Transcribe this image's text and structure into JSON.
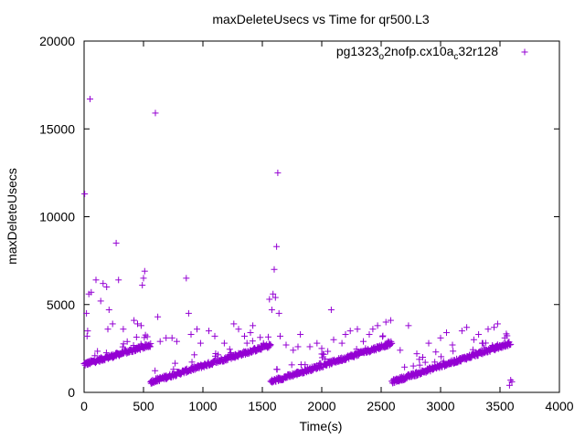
{
  "chart_data": {
    "type": "scatter",
    "title": "maxDeleteUsecs vs Time for qr500.L3",
    "xlabel": "Time(s)",
    "ylabel": "maxDeleteUsecs",
    "xlim": [
      0,
      4000
    ],
    "ylim": [
      0,
      20000
    ],
    "xticks": [
      0,
      500,
      1000,
      1500,
      2000,
      2500,
      3000,
      3500,
      4000
    ],
    "yticks": [
      0,
      5000,
      10000,
      15000,
      20000
    ],
    "grid": false,
    "legend_position": "top-right",
    "marker": "plus",
    "color": "#9400d3",
    "series": [
      {
        "name": "pg1323_o2nofp.cx10a_c32r128",
        "legend": {
          "part1": "pg1323",
          "sub1": "o",
          "part2": "2nofp.cx10a",
          "sub2": "c",
          "part3": "32r128"
        },
        "segments": [
          {
            "x_start": 0,
            "x_end": 560,
            "y_start": 1600,
            "y_end": 2700,
            "n": 180
          },
          {
            "x_start": 560,
            "x_end": 1570,
            "y_start": 600,
            "y_end": 2700,
            "n": 300
          },
          {
            "x_start": 1570,
            "x_end": 2590,
            "y_start": 600,
            "y_end": 2800,
            "n": 300
          },
          {
            "x_start": 2590,
            "x_end": 3590,
            "y_start": 600,
            "y_end": 2800,
            "n": 300
          }
        ],
        "outliers": [
          [
            5,
            11300
          ],
          [
            40,
            5600
          ],
          [
            50,
            16700
          ],
          [
            60,
            5700
          ],
          [
            20,
            4500
          ],
          [
            30,
            3500
          ],
          [
            25,
            3200
          ],
          [
            100,
            6400
          ],
          [
            140,
            5200
          ],
          [
            160,
            6200
          ],
          [
            190,
            6000
          ],
          [
            210,
            4700
          ],
          [
            270,
            8500
          ],
          [
            290,
            6400
          ],
          [
            200,
            3600
          ],
          [
            240,
            3900
          ],
          [
            330,
            3600
          ],
          [
            420,
            4100
          ],
          [
            450,
            3900
          ],
          [
            480,
            3800
          ],
          [
            490,
            6100
          ],
          [
            500,
            6500
          ],
          [
            510,
            6900
          ],
          [
            600,
            15900
          ],
          [
            620,
            4300
          ],
          [
            640,
            2900
          ],
          [
            690,
            3100
          ],
          [
            740,
            3100
          ],
          [
            780,
            2900
          ],
          [
            860,
            6500
          ],
          [
            880,
            4500
          ],
          [
            900,
            3300
          ],
          [
            950,
            3600
          ],
          [
            980,
            2800
          ],
          [
            1050,
            3500
          ],
          [
            1100,
            3200
          ],
          [
            1180,
            2800
          ],
          [
            1260,
            3900
          ],
          [
            1300,
            3600
          ],
          [
            1350,
            3200
          ],
          [
            1400,
            3400
          ],
          [
            1420,
            3800
          ],
          [
            1560,
            5300
          ],
          [
            1580,
            4700
          ],
          [
            1590,
            5600
          ],
          [
            1600,
            7000
          ],
          [
            1610,
            5400
          ],
          [
            1620,
            8300
          ],
          [
            1630,
            12500
          ],
          [
            1640,
            4500
          ],
          [
            1650,
            3200
          ],
          [
            1700,
            2700
          ],
          [
            1760,
            2400
          ],
          [
            1800,
            2600
          ],
          [
            1820,
            3300
          ],
          [
            1900,
            2600
          ],
          [
            1960,
            2800
          ],
          [
            2000,
            2500
          ],
          [
            2080,
            4700
          ],
          [
            2100,
            3000
          ],
          [
            2170,
            2800
          ],
          [
            2200,
            3300
          ],
          [
            2240,
            3500
          ],
          [
            2300,
            3600
          ],
          [
            2350,
            2900
          ],
          [
            2400,
            3300
          ],
          [
            2430,
            3600
          ],
          [
            2470,
            3800
          ],
          [
            2540,
            4000
          ],
          [
            2560,
            2900
          ],
          [
            2580,
            4100
          ],
          [
            2660,
            2400
          ],
          [
            2730,
            3800
          ],
          [
            2800,
            2200
          ],
          [
            2850,
            2000
          ],
          [
            2900,
            2800
          ],
          [
            2960,
            2300
          ],
          [
            3000,
            3100
          ],
          [
            3050,
            3400
          ],
          [
            3100,
            2700
          ],
          [
            3180,
            3500
          ],
          [
            3220,
            3700
          ],
          [
            3280,
            3000
          ],
          [
            3320,
            3300
          ],
          [
            3350,
            2800
          ],
          [
            3400,
            3600
          ],
          [
            3450,
            3700
          ],
          [
            3480,
            3900
          ],
          [
            3540,
            3100
          ],
          [
            3580,
            400
          ],
          [
            3590,
            700
          ],
          [
            3600,
            600
          ]
        ]
      }
    ]
  }
}
